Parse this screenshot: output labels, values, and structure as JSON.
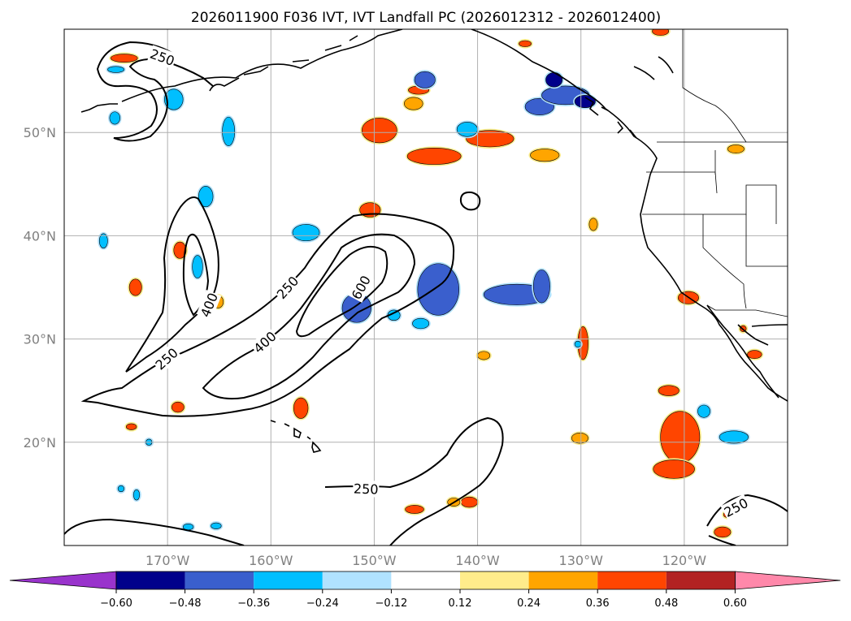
{
  "title": "2026011900 F036 IVT, IVT Landfall PC (2026012312 - 2026012400)",
  "map": {
    "lon_range": [
      -180,
      -110
    ],
    "lat_range": [
      10,
      60
    ],
    "lon_ticks": [
      {
        "value": -170,
        "label": "170°W"
      },
      {
        "value": -160,
        "label": "160°W"
      },
      {
        "value": -150,
        "label": "150°W"
      },
      {
        "value": -140,
        "label": "140°W"
      },
      {
        "value": -130,
        "label": "130°W"
      },
      {
        "value": -120,
        "label": "120°W"
      }
    ],
    "lat_ticks": [
      {
        "value": 50,
        "label": "50°N"
      },
      {
        "value": 40,
        "label": "40°N"
      },
      {
        "value": 30,
        "label": "30°N"
      },
      {
        "value": 20,
        "label": "20°N"
      }
    ],
    "grid": true
  },
  "ivt_contours": {
    "levels": [
      250,
      400,
      600
    ],
    "labels": [
      {
        "text": "250",
        "lon": -170.5,
        "lat": 57.3,
        "angle": 20
      },
      {
        "text": "400",
        "lon": -166.0,
        "lat": 33.3,
        "angle": -68
      },
      {
        "text": "250",
        "lon": -170.1,
        "lat": 28.1,
        "angle": -42
      },
      {
        "text": "250",
        "lon": -158.4,
        "lat": 35.0,
        "angle": -48
      },
      {
        "text": "400",
        "lon": -160.6,
        "lat": 29.7,
        "angle": -42
      },
      {
        "text": "600",
        "lon": -151.3,
        "lat": 35.0,
        "angle": -62
      },
      {
        "text": "250",
        "lon": -150.8,
        "lat": 15.5,
        "angle": 2
      },
      {
        "text": "250",
        "lon": -115.0,
        "lat": 13.7,
        "angle": -28
      }
    ]
  },
  "colorbar": {
    "labels": [
      "-0.60",
      "-0.48",
      "-0.36",
      "-0.24",
      "-0.12",
      "0.12",
      "0.24",
      "0.36",
      "0.48",
      "0.60"
    ],
    "colors": {
      "under": "#9933cc",
      "bins": [
        "#00008b",
        "#3a5fcd",
        "#00bfff",
        "#b0e2ff",
        "#ffffff",
        "#ffec8b",
        "#ffa500",
        "#ff4500",
        "#b22222"
      ],
      "over": "#ff88aa"
    }
  },
  "pc_patches": [
    {
      "lon": -149.5,
      "lat": 50.2,
      "rlon": 1.7,
      "rlat": 1.2,
      "value": 0.42
    },
    {
      "lon": -144.2,
      "lat": 47.7,
      "rlon": 2.6,
      "rlat": 0.8,
      "value": 0.4
    },
    {
      "lon": -138.8,
      "lat": 49.4,
      "rlon": 2.3,
      "rlat": 0.8,
      "value": 0.38
    },
    {
      "lon": -133.5,
      "lat": 47.8,
      "rlon": 1.4,
      "rlat": 0.6,
      "value": 0.34
    },
    {
      "lon": -145.7,
      "lat": 54.1,
      "rlon": 1.0,
      "rlat": 0.4,
      "value": 0.36
    },
    {
      "lon": -146.2,
      "lat": 52.8,
      "rlon": 0.9,
      "rlat": 0.6,
      "value": 0.34
    },
    {
      "lon": -150.4,
      "lat": 42.5,
      "rlon": 1.0,
      "rlat": 0.7,
      "value": 0.36
    },
    {
      "lon": -174.2,
      "lat": 57.2,
      "rlon": 1.3,
      "rlat": 0.4,
      "value": 0.36
    },
    {
      "lon": -168.8,
      "lat": 38.6,
      "rlon": 0.6,
      "rlat": 0.8,
      "value": 0.42
    },
    {
      "lon": -173.1,
      "lat": 35.0,
      "rlon": 0.6,
      "rlat": 0.8,
      "value": 0.36
    },
    {
      "lon": -165.1,
      "lat": 33.6,
      "rlon": 0.5,
      "rlat": 0.6,
      "value": 0.34
    },
    {
      "lon": -173.5,
      "lat": 21.5,
      "rlon": 0.5,
      "rlat": 0.3,
      "value": 0.36
    },
    {
      "lon": -169.0,
      "lat": 23.4,
      "rlon": 0.6,
      "rlat": 0.5,
      "value": 0.36
    },
    {
      "lon": -157.1,
      "lat": 23.3,
      "rlon": 0.7,
      "rlat": 1.0,
      "value": 0.36
    },
    {
      "lon": -129.8,
      "lat": 29.6,
      "rlon": 0.5,
      "rlat": 1.6,
      "value": 0.36
    },
    {
      "lon": -128.8,
      "lat": 41.1,
      "rlon": 0.4,
      "rlat": 0.6,
      "value": 0.34
    },
    {
      "lon": -139.4,
      "lat": 28.4,
      "rlon": 0.6,
      "rlat": 0.4,
      "value": 0.3
    },
    {
      "lon": -130.1,
      "lat": 20.4,
      "rlon": 0.8,
      "rlat": 0.5,
      "value": 0.34
    },
    {
      "lon": -120.4,
      "lat": 20.5,
      "rlon": 1.9,
      "rlat": 2.5,
      "value": 0.44
    },
    {
      "lon": -121.0,
      "lat": 17.4,
      "rlon": 2.0,
      "rlat": 0.9,
      "value": 0.42
    },
    {
      "lon": -121.5,
      "lat": 25.0,
      "rlon": 1.0,
      "rlat": 0.5,
      "value": 0.36
    },
    {
      "lon": -119.6,
      "lat": 34.0,
      "rlon": 1.0,
      "rlat": 0.6,
      "value": 0.38
    },
    {
      "lon": -113.2,
      "lat": 28.5,
      "rlon": 0.7,
      "rlat": 0.4,
      "value": 0.36
    },
    {
      "lon": -114.3,
      "lat": 31.0,
      "rlon": 0.3,
      "rlat": 0.3,
      "value": 0.36
    },
    {
      "lon": -115.0,
      "lat": 48.4,
      "rlon": 0.8,
      "rlat": 0.4,
      "value": 0.34
    },
    {
      "lon": -140.8,
      "lat": 14.2,
      "rlon": 0.8,
      "rlat": 0.5,
      "value": 0.36
    },
    {
      "lon": -142.3,
      "lat": 14.2,
      "rlon": 0.6,
      "rlat": 0.4,
      "value": 0.34
    },
    {
      "lon": -146.1,
      "lat": 13.5,
      "rlon": 0.9,
      "rlat": 0.4,
      "value": 0.36
    },
    {
      "lon": -135.4,
      "lat": 58.6,
      "rlon": 0.6,
      "rlat": 0.3,
      "value": 0.38
    },
    {
      "lon": -122.3,
      "lat": 59.8,
      "rlon": 0.8,
      "rlat": 0.4,
      "value": 0.42
    },
    {
      "lon": -116.3,
      "lat": 11.3,
      "rlon": 0.8,
      "rlat": 0.5,
      "value": 0.42
    },
    {
      "lon": -115.8,
      "lat": 13.0,
      "rlon": 0.4,
      "rlat": 0.3,
      "value": 0.38
    },
    {
      "lon": -145.1,
      "lat": 55.1,
      "rlon": 1.0,
      "rlat": 0.8,
      "value": -0.46
    },
    {
      "lon": -141.0,
      "lat": 50.3,
      "rlon": 1.0,
      "rlat": 0.7,
      "value": -0.36
    },
    {
      "lon": -156.6,
      "lat": 40.3,
      "rlon": 1.3,
      "rlat": 0.8,
      "value": -0.36
    },
    {
      "lon": -143.8,
      "lat": 34.8,
      "rlon": 2.0,
      "rlat": 2.5,
      "value": -0.42
    },
    {
      "lon": -151.7,
      "lat": 33.0,
      "rlon": 1.4,
      "rlat": 1.4,
      "value": -0.4
    },
    {
      "lon": -136.2,
      "lat": 34.3,
      "rlon": 3.2,
      "rlat": 1.0,
      "value": -0.4
    },
    {
      "lon": -133.8,
      "lat": 35.1,
      "rlon": 0.8,
      "rlat": 1.6,
      "value": -0.48
    },
    {
      "lon": -175.0,
      "lat": 56.1,
      "rlon": 0.8,
      "rlat": 0.3,
      "value": -0.3
    },
    {
      "lon": -169.4,
      "lat": 53.2,
      "rlon": 0.9,
      "rlat": 1.0,
      "value": -0.34
    },
    {
      "lon": -175.1,
      "lat": 51.4,
      "rlon": 0.5,
      "rlat": 0.6,
      "value": -0.36
    },
    {
      "lon": -164.1,
      "lat": 50.1,
      "rlon": 0.6,
      "rlat": 1.4,
      "value": -0.34
    },
    {
      "lon": -166.3,
      "lat": 43.8,
      "rlon": 0.7,
      "rlat": 1.0,
      "value": -0.36
    },
    {
      "lon": -167.1,
      "lat": 37.0,
      "rlon": 0.5,
      "rlat": 1.1,
      "value": -0.26
    },
    {
      "lon": -145.5,
      "lat": 31.5,
      "rlon": 0.8,
      "rlat": 0.5,
      "value": -0.36
    },
    {
      "lon": -148.1,
      "lat": 32.3,
      "rlon": 0.6,
      "rlat": 0.5,
      "value": -0.3
    },
    {
      "lon": -176.2,
      "lat": 39.5,
      "rlon": 0.4,
      "rlat": 0.7,
      "value": -0.3
    },
    {
      "lon": -118.1,
      "lat": 23.0,
      "rlon": 0.6,
      "rlat": 0.6,
      "value": -0.36
    },
    {
      "lon": -115.2,
      "lat": 20.5,
      "rlon": 1.4,
      "rlat": 0.6,
      "value": -0.36
    },
    {
      "lon": -130.3,
      "lat": 29.5,
      "rlon": 0.3,
      "rlat": 0.3,
      "value": -0.3
    },
    {
      "lon": -171.8,
      "lat": 20.0,
      "rlon": 0.3,
      "rlat": 0.3,
      "value": -0.26
    },
    {
      "lon": -168.0,
      "lat": 11.8,
      "rlon": 0.5,
      "rlat": 0.3,
      "value": -0.26
    },
    {
      "lon": -165.3,
      "lat": 11.9,
      "rlon": 0.5,
      "rlat": 0.3,
      "value": -0.26
    },
    {
      "lon": -174.5,
      "lat": 15.5,
      "rlon": 0.3,
      "rlat": 0.3,
      "value": -0.26
    },
    {
      "lon": -173.0,
      "lat": 14.9,
      "rlon": 0.3,
      "rlat": 0.5,
      "value": -0.3
    },
    {
      "lon": -134.0,
      "lat": 52.5,
      "rlon": 1.4,
      "rlat": 0.8,
      "value": -0.4
    },
    {
      "lon": -131.5,
      "lat": 53.6,
      "rlon": 2.3,
      "rlat": 0.9,
      "value": -0.48
    },
    {
      "lon": -132.6,
      "lat": 55.1,
      "rlon": 0.8,
      "rlat": 0.7,
      "value": -0.55
    },
    {
      "lon": -129.6,
      "lat": 53.0,
      "rlon": 1.0,
      "rlat": 0.6,
      "value": -0.55
    }
  ]
}
